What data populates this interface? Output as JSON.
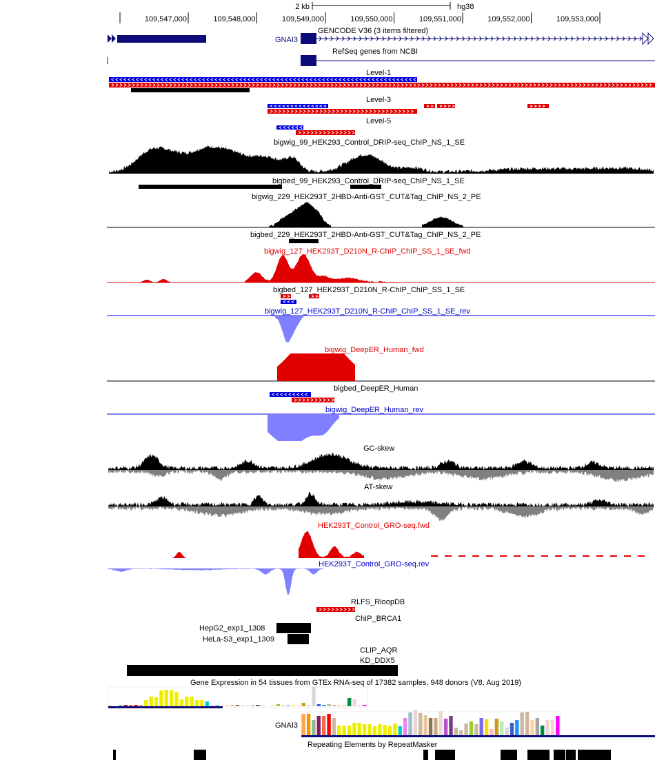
{
  "scale": {
    "size_label": "2 kb",
    "assembly": "hg38"
  },
  "ruler": {
    "positions": [
      "109,547,000",
      "109,548,000",
      "109,549,000",
      "109,550,000",
      "109,551,000",
      "109,552,000",
      "109,553,000"
    ]
  },
  "tracks": {
    "gencode": {
      "label": "GENCODE V36 (3 items filtered)",
      "gene": "GNAI3"
    },
    "refseq": {
      "label": "RefSeq genes from NCBI"
    },
    "level1": "Level-1",
    "level3": "Level-3",
    "level5": "Level-5",
    "bigwig99": "bigwig_99_HEK293_Control_DRIP-seq_ChIP_NS_1_SE",
    "bigbed99": "bigbed_99_HEK293_Control_DRIP-seq_ChIP_NS_1_SE",
    "bigwig229": "bigwig_229_HEK293T_2HBD-Anti-GST_CUT&Tag_ChIP_NS_2_PE",
    "bigbed229": "bigbed_229_HEK293T_2HBD-Anti-GST_CUT&Tag_ChIP_NS_2_PE",
    "bigwig127fwd": "bigwig_127_HEK293T_D210N_R-ChIP_ChIP_SS_1_SE_fwd",
    "bigbed127": "bigbed_127_HEK293T_D210N_R-ChIP_ChIP_SS_1_SE",
    "bigwig127rev": "bigwig_127_HEK293T_D210N_R-ChIP_ChIP_SS_1_SE_rev",
    "deeperfwd": "bigwig_DeepER_Human_fwd",
    "deeperbed": "bigbed_DeepER_Human",
    "deeperrev": "bigwig_DeepER_Human_rev",
    "gcskew": "GC-skew",
    "atskew": "AT-skew",
    "grofwd": "HEK293T_Control_GRO-seq.fwd",
    "grorev": "HEK293T_Control_GRO-seq.rev",
    "rlfs": "RLFS_RloopDB",
    "chipbrca1": "ChIP_BRCA1",
    "hepg2": "HepG2_exp1_1308",
    "hela": "HeLa-S3_exp1_1309",
    "clipaqr": "CLIP_AQR",
    "kdddx5": "KD_DDX5",
    "gtex": {
      "label": "Gene Expression in 54 tissues from GTEx RNA-seq of 17382 samples, 948 donors (V8, Aug 2019)",
      "gene": "GNAI3"
    },
    "repeatmasker": "Repeating Elements by RepeatMasker"
  },
  "colors": {
    "forward": "#e00000",
    "reverse": "#0000e0",
    "reverse_signal": "#7f7fff",
    "gene": "#0c0c78",
    "skew_negative": "#808080"
  }
}
